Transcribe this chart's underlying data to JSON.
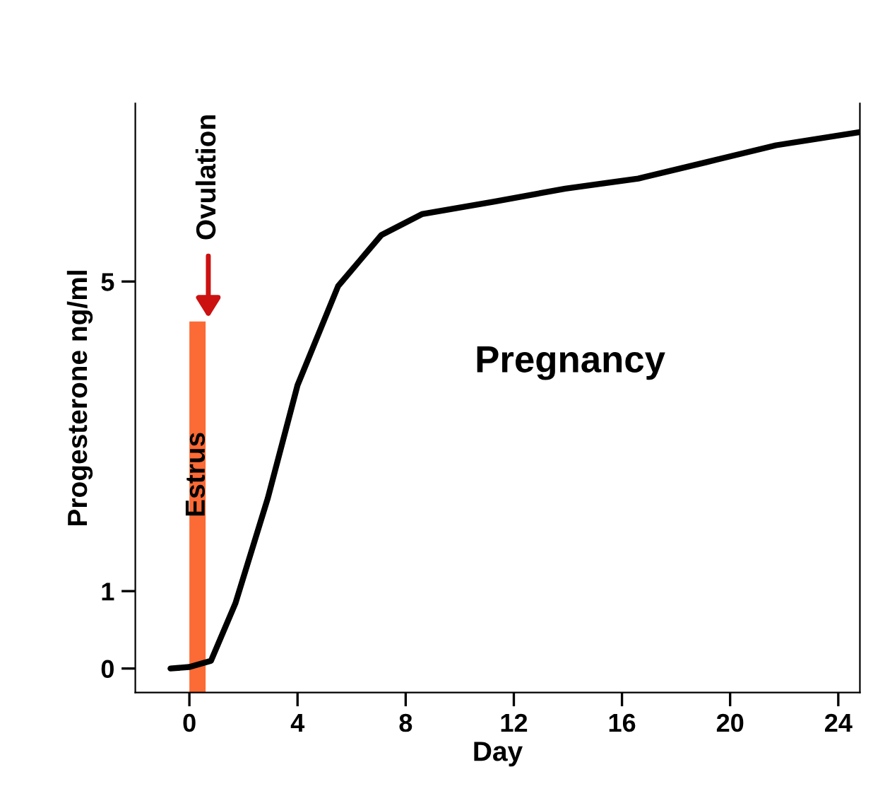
{
  "chart_data": {
    "type": "line",
    "xlabel": "Day",
    "ylabel": "Progesterone ng/ml",
    "series": [
      {
        "color": "#000000",
        "x": [
          -0.7,
          0,
          0.8,
          1.7,
          2.9,
          4.0,
          5.5,
          7.1,
          8.6,
          11.25,
          13.9,
          16.6,
          19.1,
          21.7,
          24.8
        ],
        "values": [
          0,
          0.02,
          0.1,
          0.84,
          2.2,
          3.66,
          4.94,
          5.6,
          5.87,
          6.03,
          6.2,
          6.33,
          6.54,
          6.76,
          6.93
        ]
      }
    ],
    "xlim": [
      -2,
      24.8
    ],
    "ylim": [
      -0.31,
      7.3
    ],
    "xticks": [
      0,
      4,
      8,
      12,
      16,
      20,
      24
    ],
    "yticks": [
      0,
      1,
      5
    ],
    "bands": [
      {
        "axis": "x",
        "from": 0,
        "to": 0.6,
        "label": "Estrus",
        "color": "#fc6a35"
      }
    ],
    "annotations": [
      {
        "text": "Ovulation",
        "x": 0.7,
        "y": 4.48
      },
      "Pregnancy"
    ],
    "grid": false,
    "legend": false
  }
}
